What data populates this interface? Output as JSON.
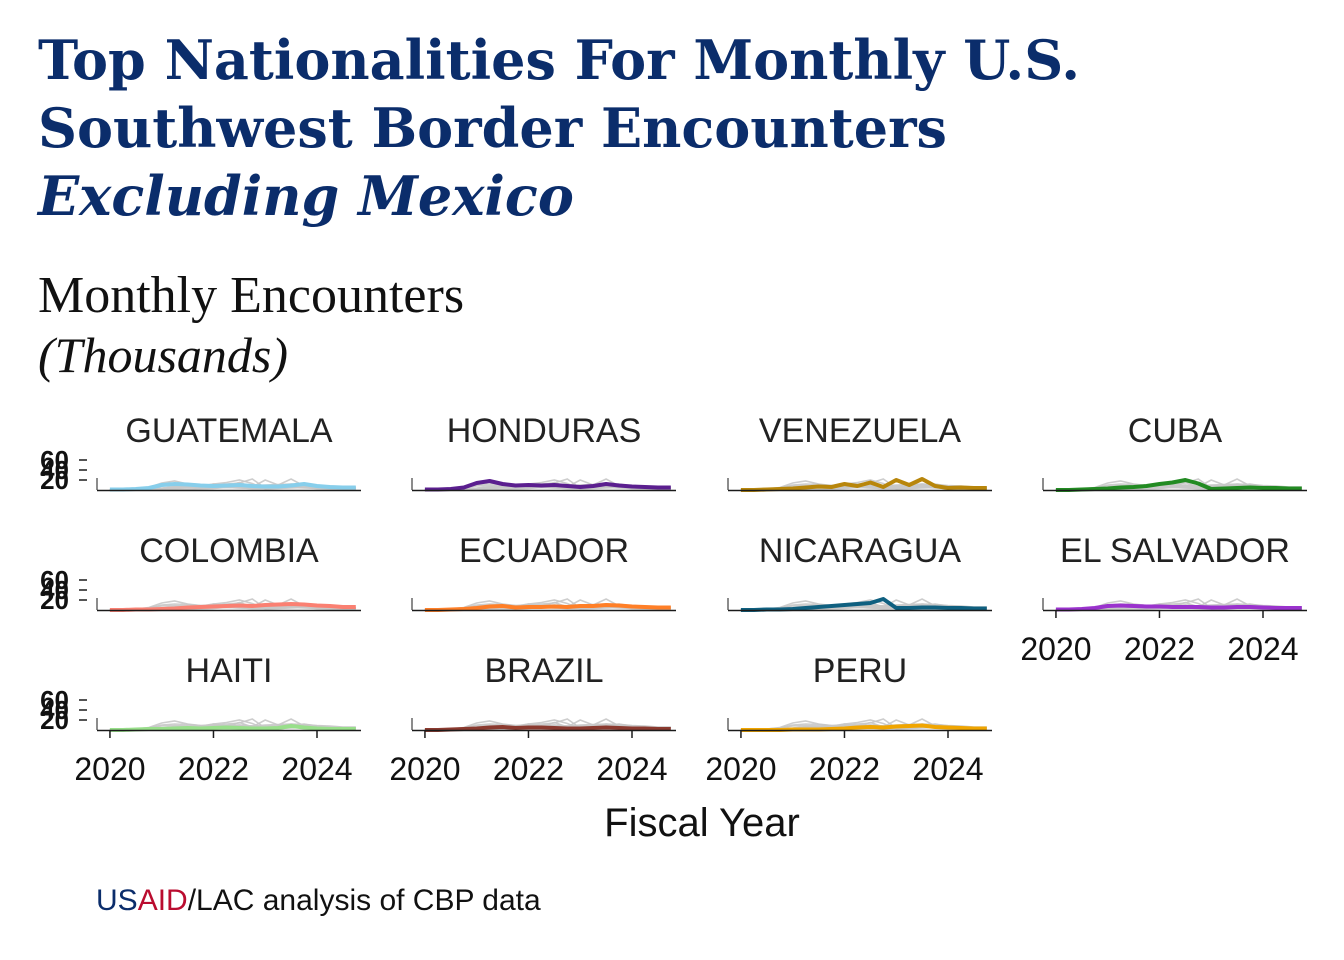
{
  "title": {
    "line1": "Top Nationalities For Monthly U.S.",
    "line2": "Southwest Border Encounters",
    "line3": "Excluding Mexico"
  },
  "y_title": {
    "line1": "Monthly Encounters",
    "line2": "(Thousands)"
  },
  "caption": {
    "us": "US",
    "aid": "AID",
    "rest": "/LAC analysis of CBP data"
  },
  "chart_data": {
    "type": "line",
    "layout": "small-multiples",
    "xlabel": "Fiscal Year",
    "x_ticks": [
      "2020",
      "2022",
      "2024"
    ],
    "y_ticks": [
      "20",
      "40",
      "60"
    ],
    "x_range": [
      2019.75,
      2024.85
    ],
    "ylim": [
      0,
      60
    ],
    "x": [
      2020.0,
      2020.25,
      2020.5,
      2020.75,
      2021.0,
      2021.25,
      2021.5,
      2021.75,
      2022.0,
      2022.25,
      2022.5,
      2022.75,
      2023.0,
      2023.25,
      2023.5,
      2023.75,
      2024.0,
      2024.25,
      2024.5,
      2024.75
    ],
    "background_color": "#c8c8c8",
    "series": [
      {
        "name": "GUATEMALA",
        "color": "#87ceeb",
        "values": [
          1,
          1,
          2,
          4,
          10,
          12,
          11,
          9,
          8,
          9,
          10,
          8,
          7,
          7,
          9,
          12,
          8,
          6,
          5,
          5
        ]
      },
      {
        "name": "HONDURAS",
        "color": "#5b1f8f",
        "values": [
          1,
          1,
          2,
          5,
          14,
          18,
          12,
          9,
          10,
          9,
          10,
          8,
          6,
          8,
          12,
          9,
          7,
          6,
          5,
          5
        ]
      },
      {
        "name": "VENEZUELA",
        "color": "#b8860b",
        "values": [
          0,
          0,
          1,
          2,
          3,
          5,
          7,
          6,
          12,
          8,
          15,
          6,
          20,
          10,
          22,
          8,
          4,
          5,
          4,
          4
        ]
      },
      {
        "name": "CUBA",
        "color": "#228b22",
        "values": [
          0,
          0,
          1,
          2,
          3,
          5,
          6,
          8,
          12,
          15,
          20,
          13,
          2,
          3,
          4,
          5,
          4,
          4,
          3,
          3
        ]
      },
      {
        "name": "COLOMBIA",
        "color": "#fa8072",
        "values": [
          0,
          0,
          1,
          1,
          2,
          3,
          5,
          6,
          7,
          8,
          9,
          8,
          10,
          11,
          12,
          11,
          9,
          8,
          6,
          6
        ]
      },
      {
        "name": "ECUADOR",
        "color": "#ff7f27",
        "values": [
          0,
          0,
          1,
          2,
          4,
          7,
          8,
          5,
          6,
          6,
          7,
          6,
          8,
          8,
          10,
          9,
          7,
          6,
          5,
          5
        ]
      },
      {
        "name": "NICARAGUA",
        "color": "#0f6080",
        "values": [
          0,
          0,
          1,
          1,
          2,
          4,
          6,
          8,
          10,
          12,
          14,
          22,
          4,
          4,
          5,
          5,
          4,
          4,
          3,
          3
        ]
      },
      {
        "name": "EL SALVADOR",
        "color": "#9a32cd",
        "values": [
          1,
          1,
          2,
          4,
          8,
          9,
          8,
          7,
          7,
          6,
          6,
          6,
          5,
          5,
          6,
          6,
          5,
          4,
          4,
          4
        ]
      },
      {
        "name": "HAITI",
        "color": "#98df8a",
        "values": [
          0,
          0,
          1,
          2,
          2,
          3,
          4,
          3,
          4,
          5,
          4,
          3,
          3,
          4,
          8,
          5,
          3,
          2,
          2,
          2
        ]
      },
      {
        "name": "BRAZIL",
        "color": "#8b3a2f",
        "values": [
          0,
          0,
          1,
          2,
          3,
          5,
          6,
          4,
          5,
          5,
          4,
          3,
          3,
          4,
          5,
          4,
          3,
          3,
          2,
          2
        ]
      },
      {
        "name": "PERU",
        "color": "#f0a500",
        "values": [
          0,
          0,
          0,
          0,
          1,
          1,
          1,
          2,
          3,
          5,
          6,
          5,
          7,
          8,
          9,
          6,
          5,
          4,
          3,
          3
        ]
      }
    ]
  }
}
